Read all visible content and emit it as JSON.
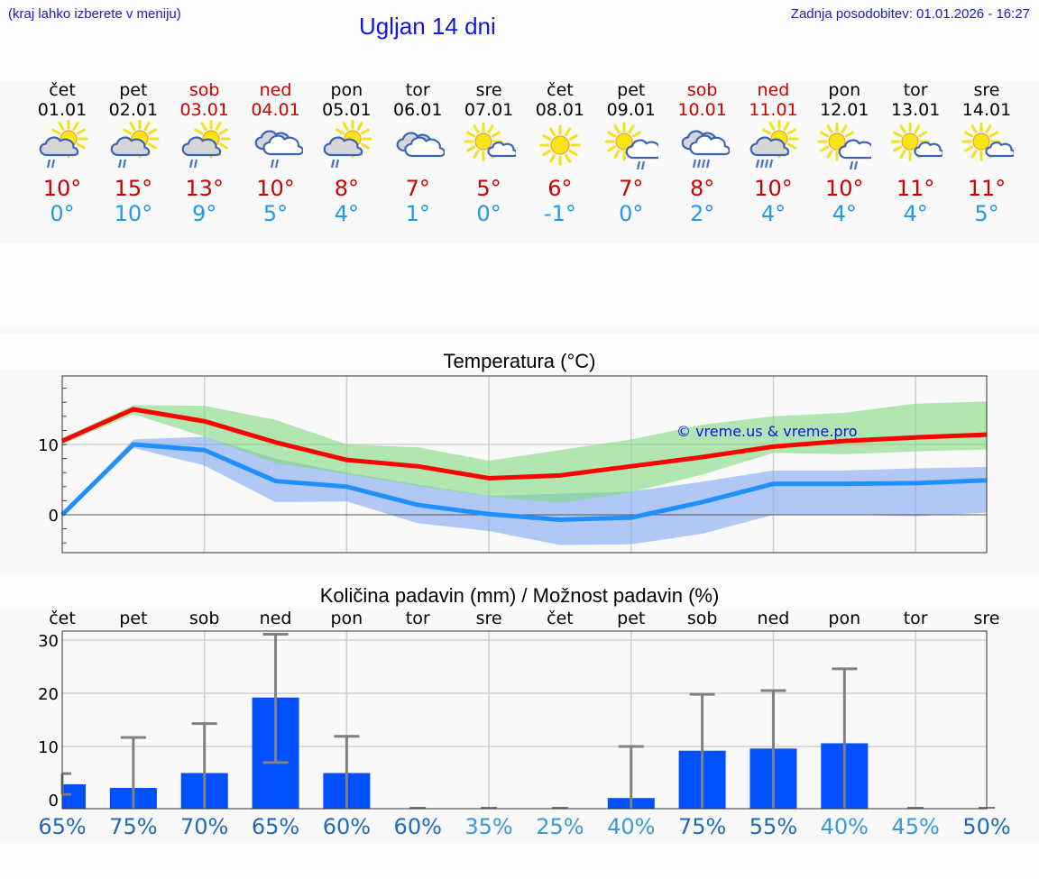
{
  "header": {
    "note": "(kraj lahko izberete v meniju)",
    "title": "Ugljan 14 dni",
    "last_update": "Zadnja posodobitev: 01.01.2026 - 16:27"
  },
  "colors": {
    "weekend": "#cc0000",
    "tmax": "#cc0000",
    "tmin": "#2299ee",
    "title_blue": "#1414e0",
    "max_line": "#ff0000",
    "min_line": "#1e90ff",
    "max_band": "#acebac",
    "min_band": "#b0c8f4",
    "overlap_band": "#80c8a8",
    "bar": "#0050ff",
    "errbar": "#808080",
    "pct_dark": "#1f6bb8",
    "pct_light": "#3a9ad9"
  },
  "days": [
    {
      "name": "čet",
      "date": "01.01",
      "weekend": false,
      "icon": "sun-cloud-rain-icon",
      "tmax": "10°",
      "tmin": "0°"
    },
    {
      "name": "pet",
      "date": "02.01",
      "weekend": false,
      "icon": "sun-cloud-rain-icon",
      "tmax": "15°",
      "tmin": "10°"
    },
    {
      "name": "sob",
      "date": "03.01",
      "weekend": true,
      "icon": "sun-cloud-rain-icon",
      "tmax": "13°",
      "tmin": "9°"
    },
    {
      "name": "ned",
      "date": "04.01",
      "weekend": true,
      "icon": "overcast-rain-icon",
      "tmax": "10°",
      "tmin": "5°"
    },
    {
      "name": "pon",
      "date": "05.01",
      "weekend": false,
      "icon": "sun-cloud-rain-icon",
      "tmax": "8°",
      "tmin": "4°"
    },
    {
      "name": "tor",
      "date": "06.01",
      "weekend": false,
      "icon": "overcast-icon",
      "tmax": "7°",
      "tmin": "1°"
    },
    {
      "name": "sre",
      "date": "07.01",
      "weekend": false,
      "icon": "sun-small-cloud-icon",
      "tmax": "5°",
      "tmin": "0°"
    },
    {
      "name": "čet",
      "date": "08.01",
      "weekend": false,
      "icon": "sun-icon",
      "tmax": "6°",
      "tmin": "-1°"
    },
    {
      "name": "pet",
      "date": "09.01",
      "weekend": false,
      "icon": "sun-white-cloud-rain-icon",
      "tmax": "7°",
      "tmin": "0°"
    },
    {
      "name": "sob",
      "date": "10.01",
      "weekend": true,
      "icon": "overcast-heavy-rain-icon",
      "tmax": "8°",
      "tmin": "2°"
    },
    {
      "name": "ned",
      "date": "11.01",
      "weekend": true,
      "icon": "sun-cloud-heavy-rain-icon",
      "tmax": "10°",
      "tmin": "4°"
    },
    {
      "name": "pon",
      "date": "12.01",
      "weekend": false,
      "icon": "sun-white-cloud-rain-icon",
      "tmax": "10°",
      "tmin": "4°"
    },
    {
      "name": "tor",
      "date": "13.01",
      "weekend": false,
      "icon": "sun-small-cloud-icon",
      "tmax": "11°",
      "tmin": "4°"
    },
    {
      "name": "sre",
      "date": "14.01",
      "weekend": false,
      "icon": "sun-small-cloud-icon",
      "tmax": "11°",
      "tmin": "5°"
    }
  ],
  "temp_chart": {
    "title": "Temperatura (°C)",
    "watermark": "© vreme.us & vreme.pro",
    "y_ticks": [
      "10",
      "0"
    ]
  },
  "precip_chart": {
    "title": "Količina padavin (mm) / Možnost padavin (%)",
    "y_ticks": [
      "30",
      "20",
      "10",
      "0"
    ],
    "dow": [
      "čet",
      "pet",
      "sob",
      "ned",
      "pon",
      "tor",
      "sre",
      "čet",
      "pet",
      "sob",
      "ned",
      "pon",
      "tor",
      "sre"
    ],
    "pct": [
      "65%",
      "75%",
      "70%",
      "65%",
      "60%",
      "60%",
      "35%",
      "25%",
      "40%",
      "75%",
      "55%",
      "40%",
      "45%",
      "50%"
    ],
    "pct_dark": [
      true,
      true,
      true,
      true,
      true,
      true,
      false,
      false,
      false,
      true,
      true,
      false,
      false,
      true
    ]
  },
  "chart_data": [
    {
      "type": "line",
      "title": "Temperatura (°C)",
      "xlabel": "",
      "ylabel": "°C",
      "categories": [
        "01.01",
        "02.01",
        "03.01",
        "04.01",
        "05.01",
        "06.01",
        "07.01",
        "08.01",
        "09.01",
        "10.01",
        "11.01",
        "12.01",
        "13.01",
        "14.01"
      ],
      "ylim": [
        -5.5,
        19.5
      ],
      "grid": true,
      "series": [
        {
          "name": "Max temperature",
          "color": "#ff0000",
          "values": [
            10.5,
            15.0,
            13.3,
            10.3,
            7.8,
            6.9,
            5.2,
            5.6,
            6.9,
            8.2,
            9.7,
            10.5,
            11.0,
            11.4
          ]
        },
        {
          "name": "Min temperature",
          "color": "#1e90ff",
          "values": [
            0.0,
            10.0,
            9.2,
            4.8,
            4.0,
            1.4,
            0.1,
            -0.7,
            -0.4,
            1.8,
            4.4,
            4.4,
            4.5,
            4.9
          ]
        },
        {
          "name": "Max range upper",
          "values": [
            10.9,
            15.6,
            15.5,
            13.5,
            10.0,
            9.6,
            7.7,
            9.2,
            10.7,
            12.8,
            14.0,
            14.5,
            15.8,
            16.1
          ]
        },
        {
          "name": "Max range lower",
          "values": [
            10.0,
            14.3,
            11.1,
            7.3,
            5.8,
            4.1,
            2.6,
            1.7,
            3.2,
            5.7,
            8.8,
            8.6,
            9.0,
            9.3
          ]
        },
        {
          "name": "Min range upper",
          "values": [
            0.0,
            10.7,
            11.1,
            8.0,
            6.0,
            4.3,
            2.7,
            3.0,
            3.3,
            4.7,
            6.3,
            6.3,
            6.6,
            6.8
          ]
        },
        {
          "name": "Min range lower",
          "values": [
            0.0,
            9.5,
            7.0,
            1.8,
            1.9,
            -1.2,
            -2.3,
            -4.3,
            -4.2,
            -2.7,
            0.0,
            0.0,
            -0.2,
            0.3
          ]
        }
      ],
      "annotations": [
        "© vreme.us & vreme.pro"
      ]
    },
    {
      "type": "bar",
      "title": "Količina padavin (mm) / Možnost padavin (%)",
      "xlabel": "",
      "ylabel": "mm",
      "categories": [
        "čet",
        "pet",
        "sob",
        "ned",
        "pon",
        "tor",
        "sre",
        "čet",
        "pet",
        "sob",
        "ned",
        "pon",
        "tor",
        "sre"
      ],
      "ylim": [
        -1.7,
        31.7
      ],
      "grid": true,
      "series": [
        {
          "name": "Precipitation (mm)",
          "color": "#0050ff",
          "values": [
            2.9,
            2.2,
            5.0,
            19.2,
            5.0,
            0.0,
            0.0,
            0.0,
            0.3,
            9.2,
            9.6,
            10.6,
            0.0,
            0.0
          ]
        },
        {
          "name": "Precipitation max (mm)",
          "values": [
            4.9,
            11.7,
            14.3,
            31.1,
            11.9,
            0.0,
            0.0,
            0.0,
            10.0,
            19.8,
            20.5,
            24.6,
            0.0,
            0.0
          ]
        },
        {
          "name": "Precipitation min (mm)",
          "values": [
            1.0,
            0.0,
            0.0,
            7.0,
            0.0,
            0.0,
            0.0,
            0.0,
            0.0,
            0.0,
            0.0,
            0.0,
            0.0,
            0.0
          ]
        },
        {
          "name": "Precipitation probability (%)",
          "values": [
            65,
            75,
            70,
            65,
            60,
            60,
            35,
            25,
            40,
            75,
            55,
            40,
            45,
            50
          ]
        }
      ]
    }
  ]
}
